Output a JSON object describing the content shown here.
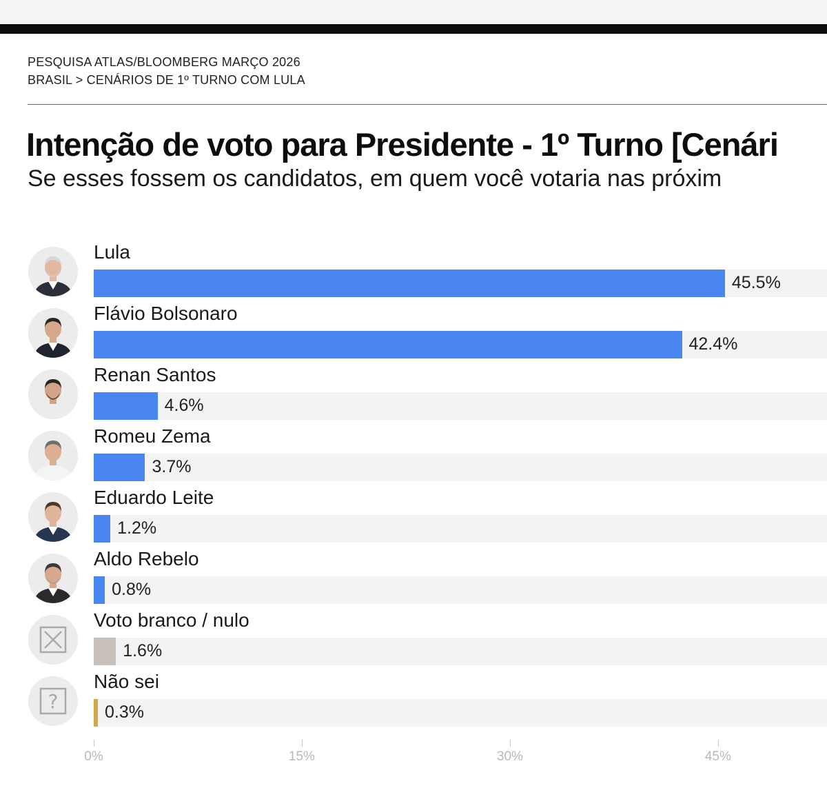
{
  "header": {
    "kicker": "PESQUISA ATLAS/BLOOMBERG MARÇO 2026",
    "breadcrumb": "BRASIL > CENÁRIOS DE 1º TURNO COM LULA"
  },
  "chart_data": {
    "type": "bar",
    "orientation": "horizontal",
    "title": "Intenção de voto para Presidente - 1º Turno [Cenári",
    "subtitle": "Se esses fossem os candidatos, em quem você votaria nas próxim",
    "categories": [
      "Lula",
      "Flávio Bolsonaro",
      "Renan Santos",
      "Romeu Zema",
      "Eduardo Leite",
      "Aldo Rebelo",
      "Voto branco / nulo",
      "Não sei"
    ],
    "values": [
      45.5,
      42.4,
      4.6,
      3.7,
      1.2,
      0.8,
      1.6,
      0.3
    ],
    "value_labels": [
      "45.5%",
      "42.4%",
      "4.6%",
      "3.7%",
      "1.2%",
      "0.8%",
      "1.6%",
      "0.3%"
    ],
    "bar_colors": [
      "#4a86f0",
      "#4a86f0",
      "#4a86f0",
      "#4a86f0",
      "#4a86f0",
      "#4a86f0",
      "#c8c0ba",
      "#d4a64a"
    ],
    "icons": [
      "lula-avatar-icon",
      "flavio-bolsonaro-avatar-icon",
      "renan-santos-avatar-icon",
      "romeu-zema-avatar-icon",
      "eduardo-leite-avatar-icon",
      "aldo-rebelo-avatar-icon",
      "x-box-icon",
      "question-box-icon"
    ],
    "xlim": [
      0,
      53
    ],
    "xticks": [
      0,
      15,
      30,
      45
    ],
    "xtick_labels": [
      "0%",
      "15%",
      "30%",
      "45%"
    ],
    "track_color": "#f3f3f3",
    "grid": false,
    "legend": "none"
  }
}
